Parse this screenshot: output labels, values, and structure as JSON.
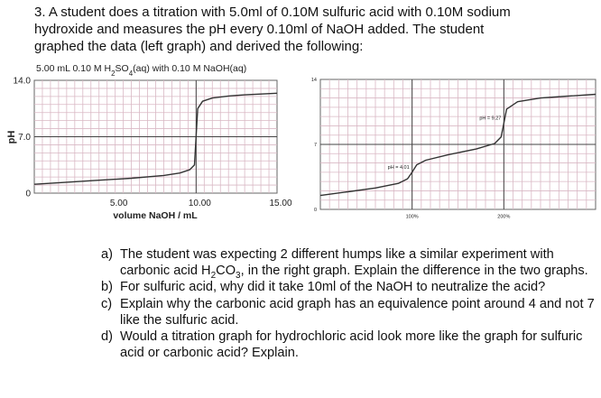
{
  "intro": {
    "lines": [
      "3. A student does a titration with 5.0ml of 0.10M sulfuric acid with 0.10M sodium",
      "hydroxide and measures the pH every 0.10ml of NaOH added. The student",
      "graphed the data (left graph) and derived the following:"
    ]
  },
  "chart_data": [
    {
      "type": "line",
      "title": "5.00 mL 0.10 M H2SO4(aq) with 0.10 M NaOH(aq)",
      "title_parts": {
        "a": "5.00 mL 0.10 M H",
        "sub1": "2",
        "b": "SO",
        "sub2": "4",
        "c": "(aq) with 0.10 M NaOH(aq)"
      },
      "xlabel": "volume NaOH / mL",
      "ylabel": "pH",
      "xlim": [
        0,
        15
      ],
      "ylim": [
        0,
        14
      ],
      "xticks": [
        "5.00",
        "10.00",
        "15.00"
      ],
      "xtick_values": [
        5,
        10,
        15
      ],
      "yticks": [
        "0",
        "7.0",
        "14.0"
      ],
      "ytick_values": [
        0,
        7,
        14
      ],
      "grid": true,
      "x": [
        0,
        2,
        4,
        6,
        8,
        9,
        9.6,
        9.9,
        10,
        10.1,
        10.4,
        11,
        12,
        13,
        14,
        15
      ],
      "y": [
        1.1,
        1.35,
        1.6,
        1.85,
        2.2,
        2.5,
        2.9,
        3.5,
        7.0,
        10.5,
        11.4,
        11.8,
        12.05,
        12.2,
        12.3,
        12.4
      ],
      "line_color": "#333333"
    },
    {
      "type": "line",
      "title": "",
      "xlim": [
        0,
        300
      ],
      "ylim": [
        0,
        14
      ],
      "xticks": [
        "100%",
        "200%"
      ],
      "xtick_values": [
        100,
        200
      ],
      "yticks": [
        "0",
        "7",
        "14"
      ],
      "ytick_values": [
        0,
        7,
        14
      ],
      "grid": true,
      "x": [
        0,
        30,
        60,
        85,
        95,
        100,
        105,
        115,
        140,
        170,
        190,
        197,
        200,
        203,
        215,
        240,
        270,
        300
      ],
      "y": [
        1.5,
        1.9,
        2.3,
        2.8,
        3.3,
        4.01,
        4.8,
        5.3,
        5.9,
        6.5,
        7.1,
        7.8,
        9.27,
        10.8,
        11.6,
        12.0,
        12.2,
        12.4
      ],
      "annotations": [
        {
          "text": "pH = 4.01",
          "x": 100,
          "y": 4.01
        },
        {
          "text": "pH = 9.27",
          "x": 200,
          "y": 9.27
        }
      ],
      "line_color": "#333333"
    }
  ],
  "questions": [
    {
      "label": "a)",
      "parts": {
        "a": "The student was expecting 2 different humps like a similar experiment with carbonic acid H",
        "sub1": "2",
        "b": "CO",
        "sub2": "3",
        "c": ", in the right graph. Explain the difference in the two graphs."
      }
    },
    {
      "label": "b)",
      "text": "For sulfuric acid, why did it take 10ml of the NaOH to neutralize the acid?"
    },
    {
      "label": "c)",
      "text": "Explain why the carbonic acid graph has an equivalence point around 4 and not 7 like the sulfuric acid."
    },
    {
      "label": "d)",
      "text": "Would a titration graph for hydrochloric acid look more like the graph for sulfuric acid or carbonic acid? Explain."
    }
  ]
}
